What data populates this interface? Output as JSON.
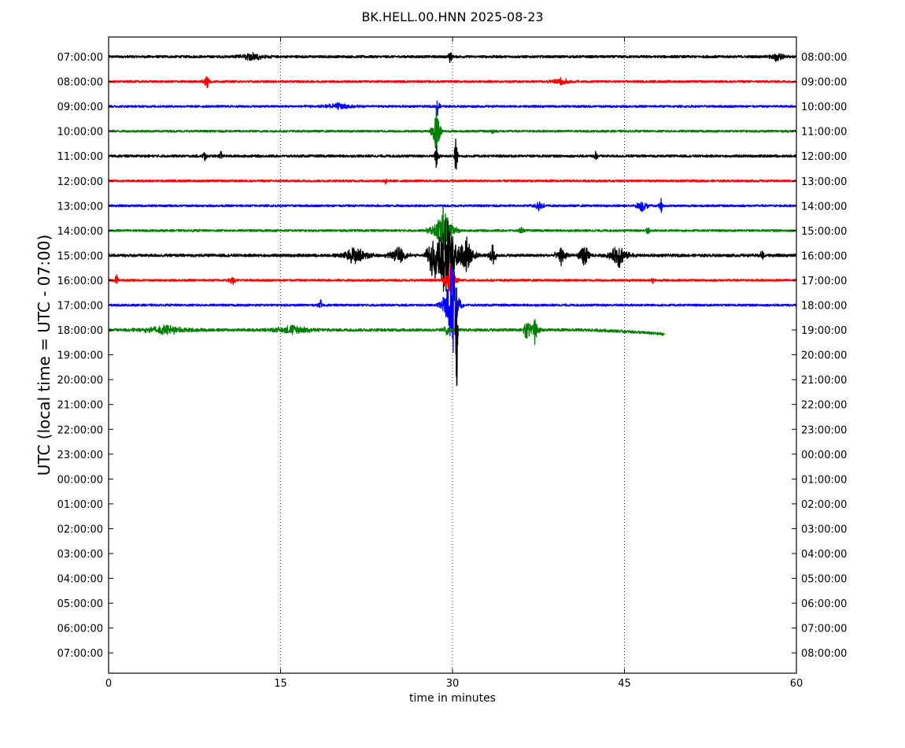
{
  "chart_data": {
    "type": "line",
    "title": "BK.HELL.00.HNN 2025-08-23",
    "xlabel": "time in minutes",
    "ylabel": "UTC (local time = UTC - 07:00)",
    "xlim": [
      0,
      60
    ],
    "x_ticks": [
      0,
      15,
      30,
      45,
      60
    ],
    "x_tick_labels": [
      "0",
      "15",
      "30",
      "45",
      "60"
    ],
    "grid": "vertical dotted lines at 15, 30, 45",
    "left_tick_labels": [
      "07:00:00",
      "08:00:00",
      "09:00:00",
      "10:00:00",
      "11:00:00",
      "12:00:00",
      "13:00:00",
      "14:00:00",
      "15:00:00",
      "16:00:00",
      "17:00:00",
      "18:00:00",
      "19:00:00",
      "20:00:00",
      "21:00:00",
      "22:00:00",
      "23:00:00",
      "00:00:00",
      "01:00:00",
      "02:00:00",
      "03:00:00",
      "04:00:00",
      "05:00:00",
      "06:00:00",
      "07:00:00"
    ],
    "right_tick_labels": [
      "08:00:00",
      "09:00:00",
      "10:00:00",
      "11:00:00",
      "12:00:00",
      "13:00:00",
      "14:00:00",
      "15:00:00",
      "16:00:00",
      "17:00:00",
      "18:00:00",
      "19:00:00",
      "20:00:00",
      "21:00:00",
      "22:00:00",
      "23:00:00",
      "00:00:00",
      "01:00:00",
      "02:00:00",
      "03:00:00",
      "04:00:00",
      "05:00:00",
      "06:00:00",
      "07:00:00",
      "08:00:00"
    ],
    "traces": [
      {
        "row": "07:00:00",
        "color": "#000000",
        "end_minute": 60,
        "noise": 0.4,
        "events": [
          {
            "t": 12.5,
            "amp": 0.3,
            "dur": 2
          },
          {
            "t": 29.8,
            "amp": 0.6,
            "dur": 0.3
          },
          {
            "t": 58.3,
            "amp": 0.4,
            "dur": 1
          }
        ]
      },
      {
        "row": "08:00:00",
        "color": "#ff0000",
        "end_minute": 60,
        "noise": 0.35,
        "events": [
          {
            "t": 8.6,
            "amp": 0.6,
            "dur": 0.5
          },
          {
            "t": 39.5,
            "amp": 0.2,
            "dur": 2
          }
        ]
      },
      {
        "row": "09:00:00",
        "color": "#0000ff",
        "end_minute": 60,
        "noise": 0.35,
        "events": [
          {
            "t": 20,
            "amp": 0.2,
            "dur": 3
          },
          {
            "t": 28.7,
            "amp": 0.7,
            "dur": 0.3
          }
        ]
      },
      {
        "row": "10:00:00",
        "color": "#008000",
        "end_minute": 60,
        "noise": 0.35,
        "events": [
          {
            "t": 28.6,
            "amp": 1.8,
            "dur": 0.6
          },
          {
            "t": 33.5,
            "amp": 0.2,
            "dur": 0.3
          }
        ]
      },
      {
        "row": "11:00:00",
        "color": "#000000",
        "end_minute": 60,
        "noise": 0.4,
        "events": [
          {
            "t": 8.4,
            "amp": 0.5,
            "dur": 0.3
          },
          {
            "t": 9.8,
            "amp": 0.4,
            "dur": 0.3
          },
          {
            "t": 28.6,
            "amp": 0.9,
            "dur": 0.3
          },
          {
            "t": 30.3,
            "amp": 2.3,
            "dur": 0.2
          },
          {
            "t": 42.5,
            "amp": 0.3,
            "dur": 0.3
          }
        ]
      },
      {
        "row": "12:00:00",
        "color": "#ff0000",
        "end_minute": 60,
        "noise": 0.35,
        "events": [
          {
            "t": 24.2,
            "amp": 0.2,
            "dur": 0.4
          }
        ]
      },
      {
        "row": "13:00:00",
        "color": "#0000ff",
        "end_minute": 60,
        "noise": 0.35,
        "events": [
          {
            "t": 37.5,
            "amp": 0.4,
            "dur": 0.8
          },
          {
            "t": 46.5,
            "amp": 0.4,
            "dur": 1
          },
          {
            "t": 48.2,
            "amp": 0.5,
            "dur": 0.3
          }
        ]
      },
      {
        "row": "14:00:00",
        "color": "#008000",
        "end_minute": 60,
        "noise": 0.35,
        "events": [
          {
            "t": 29.2,
            "amp": 1.5,
            "dur": 1.5
          },
          {
            "t": 36,
            "amp": 0.3,
            "dur": 0.4
          },
          {
            "t": 47,
            "amp": 0.3,
            "dur": 0.4
          }
        ]
      },
      {
        "row": "15:00:00",
        "color": "#000000",
        "end_minute": 60,
        "noise": 0.45,
        "events": [
          {
            "t": 21.5,
            "amp": 0.6,
            "dur": 2
          },
          {
            "t": 25.3,
            "amp": 0.6,
            "dur": 1.5
          },
          {
            "t": 28.3,
            "amp": 1.6,
            "dur": 0.8
          },
          {
            "t": 29.4,
            "amp": 2.8,
            "dur": 1.8
          },
          {
            "t": 31.2,
            "amp": 1.2,
            "dur": 1.2
          },
          {
            "t": 33.5,
            "amp": 0.9,
            "dur": 0.5
          },
          {
            "t": 39.5,
            "amp": 0.6,
            "dur": 1
          },
          {
            "t": 41.5,
            "amp": 0.8,
            "dur": 0.8
          },
          {
            "t": 44.5,
            "amp": 0.8,
            "dur": 1.5
          },
          {
            "t": 57,
            "amp": 0.3,
            "dur": 0.5
          }
        ]
      },
      {
        "row": "16:00:00",
        "color": "#ff0000",
        "end_minute": 60,
        "noise": 0.35,
        "events": [
          {
            "t": 0.7,
            "amp": 0.4,
            "dur": 0.3
          },
          {
            "t": 10.8,
            "amp": 0.3,
            "dur": 0.5
          },
          {
            "t": 29.8,
            "amp": 1.2,
            "dur": 0.8
          },
          {
            "t": 47.5,
            "amp": 0.2,
            "dur": 0.4
          }
        ]
      },
      {
        "row": "17:00:00",
        "color": "#0000ff",
        "end_minute": 60,
        "noise": 0.35,
        "events": [
          {
            "t": 18.5,
            "amp": 0.3,
            "dur": 0.4
          },
          {
            "t": 29.8,
            "amp": 1.9,
            "dur": 1.2
          },
          {
            "t": 30.1,
            "amp": 2.8,
            "dur": 0.5
          }
        ]
      },
      {
        "row": "18:00:00",
        "color": "#008000",
        "end_minute": 48.5,
        "noise": 0.45,
        "drift_start_minute": 40,
        "drift": 0.25,
        "events": [
          {
            "t": 5,
            "amp": 0.3,
            "dur": 4
          },
          {
            "t": 16,
            "amp": 0.3,
            "dur": 3
          },
          {
            "t": 29.5,
            "amp": 0.4,
            "dur": 0.5
          },
          {
            "t": 36.5,
            "amp": 0.9,
            "dur": 0.6
          },
          {
            "t": 37.2,
            "amp": 0.9,
            "dur": 0.6
          }
        ]
      },
      {
        "row": "18:00:00",
        "color": "#000000",
        "end_minute": 60,
        "noise": 0,
        "events": [
          {
            "t": 30.35,
            "amp": 6.5,
            "dur": 0.15
          }
        ],
        "only_event": true
      }
    ]
  }
}
